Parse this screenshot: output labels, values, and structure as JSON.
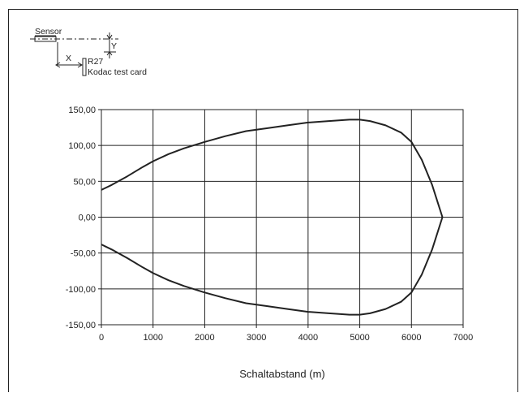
{
  "schematic": {
    "sensor_label": "Sensor",
    "x_label": "X",
    "y_label": "Y",
    "reflector_code": "R27",
    "target_label": "Kodac test card"
  },
  "chart_data": {
    "type": "line",
    "title": "",
    "xlabel": "Schaltabstand (m)",
    "ylabel": "",
    "xlim": [
      0,
      7000
    ],
    "ylim": [
      -150,
      150
    ],
    "x_ticks": [
      0,
      1000,
      2000,
      3000,
      4000,
      5000,
      6000,
      7000
    ],
    "x_tick_labels": [
      "0",
      "1000",
      "2000",
      "3000",
      "4000",
      "5000",
      "6000",
      "7000"
    ],
    "y_ticks": [
      150,
      100,
      50,
      0,
      -50,
      -100,
      -150
    ],
    "y_tick_labels": [
      "150,00",
      "100,00",
      "50,00",
      "0,00",
      "-50,00",
      "-100,00",
      "-150,00"
    ],
    "grid": true,
    "legend": "none",
    "line_color": "#222222",
    "series": [
      {
        "x": [
          0,
          200,
          500,
          800,
          1000,
          1300,
          1600,
          2000,
          2400,
          2800,
          3200,
          3600,
          4000,
          4400,
          4800,
          5000,
          5200,
          5500,
          5800,
          6000,
          6200,
          6400,
          6600
        ],
        "y": [
          38,
          45,
          57,
          70,
          78,
          88,
          96,
          105,
          113,
          120,
          124,
          128,
          132,
          134,
          136,
          136,
          134,
          128,
          118,
          105,
          80,
          45,
          0
        ]
      },
      {
        "x": [
          0,
          200,
          500,
          800,
          1000,
          1300,
          1600,
          2000,
          2400,
          2800,
          3200,
          3600,
          4000,
          4400,
          4800,
          5000,
          5200,
          5500,
          5800,
          6000,
          6200,
          6400,
          6600
        ],
        "y": [
          -38,
          -45,
          -57,
          -70,
          -78,
          -88,
          -96,
          -105,
          -113,
          -120,
          -124,
          -128,
          -132,
          -134,
          -136,
          -136,
          -134,
          -128,
          -118,
          -105,
          -80,
          -45,
          0
        ]
      }
    ]
  }
}
